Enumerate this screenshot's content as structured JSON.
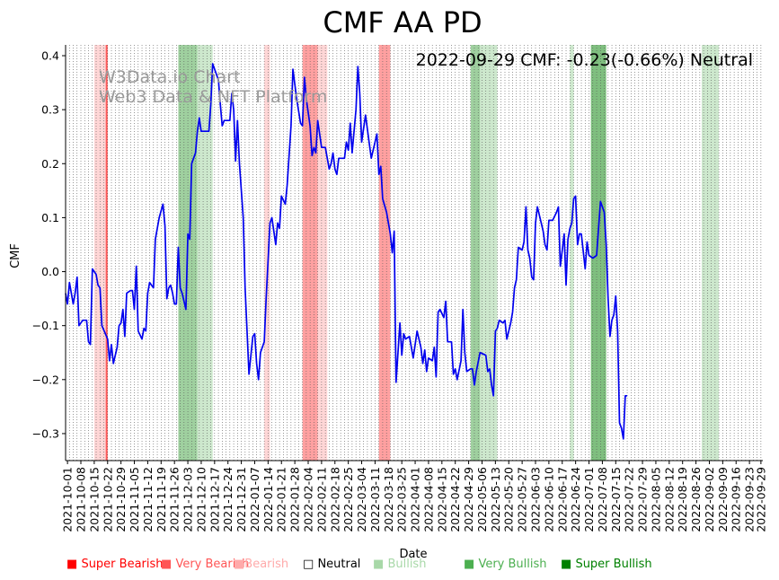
{
  "chart_data": {
    "type": "line",
    "title": "CMF AA PD",
    "xlabel": "Date",
    "ylabel": "CMF",
    "ylim": [
      -0.35,
      0.42
    ],
    "yticks": [
      -0.3,
      -0.2,
      -0.1,
      0.0,
      0.1,
      0.2,
      0.3,
      0.4
    ],
    "ytick_labels": [
      "−0.3",
      "−0.2",
      "−0.1",
      "0.0",
      "0.1",
      "0.2",
      "0.3",
      "0.4"
    ],
    "xlim": [
      "2021-09-30",
      "2022-09-30"
    ],
    "xtick_labels": [
      "2021-10-01",
      "2021-10-08",
      "2021-10-15",
      "2021-10-22",
      "2021-10-29",
      "2021-11-05",
      "2021-11-12",
      "2021-11-19",
      "2021-11-26",
      "2021-12-03",
      "2021-12-10",
      "2021-12-17",
      "2021-12-24",
      "2021-12-31",
      "2022-01-07",
      "2022-01-14",
      "2022-01-21",
      "2022-01-28",
      "2022-02-04",
      "2022-02-11",
      "2022-02-18",
      "2022-02-25",
      "2022-03-04",
      "2022-03-11",
      "2022-03-18",
      "2022-03-25",
      "2022-04-01",
      "2022-04-08",
      "2022-04-15",
      "2022-04-22",
      "2022-04-29",
      "2022-05-06",
      "2022-05-13",
      "2022-05-20",
      "2022-05-27",
      "2022-06-03",
      "2022-06-10",
      "2022-06-17",
      "2022-06-24",
      "2022-07-01",
      "2022-07-08",
      "2022-07-15",
      "2022-07-22",
      "2022-07-29",
      "2022-08-05",
      "2022-08-12",
      "2022-08-19",
      "2022-08-26",
      "2022-09-02",
      "2022-09-09",
      "2022-09-16",
      "2022-09-23",
      "2022-09-29"
    ],
    "annotation": "2022-09-29 CMF: -0.23(-0.66%) Neutral",
    "watermark": [
      "W3Data.io Chart",
      "Web3 Data & NFT Platform"
    ],
    "series": [
      {
        "name": "CMF",
        "color": "#0000ee",
        "points": [
          [
            "2021-09-30",
            -0.04
          ],
          [
            "2021-10-01",
            -0.06
          ],
          [
            "2021-10-02",
            -0.02
          ],
          [
            "2021-10-04",
            -0.06
          ],
          [
            "2021-10-05",
            -0.04
          ],
          [
            "2021-10-06",
            -0.01
          ],
          [
            "2021-10-07",
            -0.1
          ],
          [
            "2021-10-09",
            -0.09
          ],
          [
            "2021-10-11",
            -0.09
          ],
          [
            "2021-10-12",
            -0.13
          ],
          [
            "2021-10-13",
            -0.135
          ],
          [
            "2021-10-14",
            0.005
          ],
          [
            "2021-10-16",
            -0.005
          ],
          [
            "2021-10-17",
            -0.025
          ],
          [
            "2021-10-18",
            -0.03
          ],
          [
            "2021-10-19",
            -0.1
          ],
          [
            "2021-10-22",
            -0.125
          ],
          [
            "2021-10-23",
            -0.165
          ],
          [
            "2021-10-24",
            -0.135
          ],
          [
            "2021-10-25",
            -0.17
          ],
          [
            "2021-10-27",
            -0.14
          ],
          [
            "2021-10-28",
            -0.1
          ],
          [
            "2021-10-29",
            -0.095
          ],
          [
            "2021-10-30",
            -0.07
          ],
          [
            "2021-10-31",
            -0.12
          ],
          [
            "2021-11-01",
            -0.04
          ],
          [
            "2021-11-03",
            -0.035
          ],
          [
            "2021-11-04",
            -0.035
          ],
          [
            "2021-11-05",
            -0.07
          ],
          [
            "2021-11-06",
            0.01
          ],
          [
            "2021-11-07",
            -0.11
          ],
          [
            "2021-11-09",
            -0.125
          ],
          [
            "2021-11-10",
            -0.105
          ],
          [
            "2021-11-11",
            -0.11
          ],
          [
            "2021-11-12",
            -0.04
          ],
          [
            "2021-11-13",
            -0.02
          ],
          [
            "2021-11-15",
            -0.03
          ],
          [
            "2021-11-16",
            0.06
          ],
          [
            "2021-11-18",
            0.1
          ],
          [
            "2021-11-20",
            0.125
          ],
          [
            "2021-11-21",
            0.085
          ],
          [
            "2021-11-22",
            -0.05
          ],
          [
            "2021-11-23",
            -0.03
          ],
          [
            "2021-11-24",
            -0.025
          ],
          [
            "2021-11-25",
            -0.04
          ],
          [
            "2021-11-26",
            -0.06
          ],
          [
            "2021-11-27",
            -0.06
          ],
          [
            "2021-11-28",
            0.045
          ],
          [
            "2021-11-29",
            -0.03
          ],
          [
            "2021-11-30",
            -0.04
          ],
          [
            "2021-12-02",
            -0.07
          ],
          [
            "2021-12-03",
            0.07
          ],
          [
            "2021-12-04",
            0.06
          ],
          [
            "2021-12-05",
            0.2
          ],
          [
            "2021-12-07",
            0.22
          ],
          [
            "2021-12-08",
            0.26
          ],
          [
            "2021-12-09",
            0.285
          ],
          [
            "2021-12-10",
            0.26
          ],
          [
            "2021-12-14",
            0.26
          ],
          [
            "2021-12-15",
            0.31
          ],
          [
            "2021-12-16",
            0.385
          ],
          [
            "2021-12-19",
            0.355
          ],
          [
            "2021-12-20",
            0.31
          ],
          [
            "2021-12-21",
            0.27
          ],
          [
            "2021-12-22",
            0.28
          ],
          [
            "2021-12-25",
            0.28
          ],
          [
            "2021-12-26",
            0.33
          ],
          [
            "2021-12-27",
            0.3
          ],
          [
            "2021-12-28",
            0.205
          ],
          [
            "2021-12-29",
            0.28
          ],
          [
            "2021-12-30",
            0.2
          ],
          [
            "2022-01-01",
            0.1
          ],
          [
            "2022-01-02",
            -0.03
          ],
          [
            "2022-01-04",
            -0.19
          ],
          [
            "2022-01-06",
            -0.12
          ],
          [
            "2022-01-07",
            -0.115
          ],
          [
            "2022-01-08",
            -0.17
          ],
          [
            "2022-01-09",
            -0.2
          ],
          [
            "2022-01-10",
            -0.15
          ],
          [
            "2022-01-12",
            -0.13
          ],
          [
            "2022-01-13",
            -0.05
          ],
          [
            "2022-01-15",
            0.09
          ],
          [
            "2022-01-16",
            0.1
          ],
          [
            "2022-01-18",
            0.05
          ],
          [
            "2022-01-19",
            0.09
          ],
          [
            "2022-01-20",
            0.08
          ],
          [
            "2022-01-21",
            0.14
          ],
          [
            "2022-01-23",
            0.125
          ],
          [
            "2022-01-24",
            0.16
          ],
          [
            "2022-01-26",
            0.27
          ],
          [
            "2022-01-27",
            0.375
          ],
          [
            "2022-01-29",
            0.32
          ],
          [
            "2022-01-31",
            0.275
          ],
          [
            "2022-02-01",
            0.27
          ],
          [
            "2022-02-02",
            0.36
          ],
          [
            "2022-02-03",
            0.32
          ],
          [
            "2022-02-05",
            0.27
          ],
          [
            "2022-02-06",
            0.215
          ],
          [
            "2022-02-07",
            0.23
          ],
          [
            "2022-02-08",
            0.22
          ],
          [
            "2022-02-09",
            0.28
          ],
          [
            "2022-02-11",
            0.23
          ],
          [
            "2022-02-13",
            0.23
          ],
          [
            "2022-02-15",
            0.19
          ],
          [
            "2022-02-16",
            0.2
          ],
          [
            "2022-02-17",
            0.22
          ],
          [
            "2022-02-18",
            0.19
          ],
          [
            "2022-02-19",
            0.18
          ],
          [
            "2022-02-20",
            0.21
          ],
          [
            "2022-02-23",
            0.21
          ],
          [
            "2022-02-24",
            0.24
          ],
          [
            "2022-02-25",
            0.225
          ],
          [
            "2022-02-26",
            0.275
          ],
          [
            "2022-02-27",
            0.22
          ],
          [
            "2022-03-01",
            0.3
          ],
          [
            "2022-03-02",
            0.38
          ],
          [
            "2022-03-03",
            0.33
          ],
          [
            "2022-03-04",
            0.24
          ],
          [
            "2022-03-06",
            0.29
          ],
          [
            "2022-03-09",
            0.21
          ],
          [
            "2022-03-12",
            0.255
          ],
          [
            "2022-03-13",
            0.18
          ],
          [
            "2022-03-14",
            0.195
          ],
          [
            "2022-03-15",
            0.135
          ],
          [
            "2022-03-17",
            0.11
          ],
          [
            "2022-03-19",
            0.07
          ],
          [
            "2022-03-20",
            0.035
          ],
          [
            "2022-03-21",
            0.075
          ],
          [
            "2022-03-22",
            -0.205
          ],
          [
            "2022-03-24",
            -0.095
          ],
          [
            "2022-03-25",
            -0.155
          ],
          [
            "2022-03-26",
            -0.115
          ],
          [
            "2022-03-27",
            -0.125
          ],
          [
            "2022-03-29",
            -0.12
          ],
          [
            "2022-03-31",
            -0.16
          ],
          [
            "2022-04-02",
            -0.11
          ],
          [
            "2022-04-04",
            -0.14
          ],
          [
            "2022-04-05",
            -0.17
          ],
          [
            "2022-04-06",
            -0.145
          ],
          [
            "2022-04-07",
            -0.185
          ],
          [
            "2022-04-08",
            -0.16
          ],
          [
            "2022-04-10",
            -0.165
          ],
          [
            "2022-04-11",
            -0.14
          ],
          [
            "2022-04-12",
            -0.195
          ],
          [
            "2022-04-13",
            -0.075
          ],
          [
            "2022-04-14",
            -0.07
          ],
          [
            "2022-04-16",
            -0.085
          ],
          [
            "2022-04-17",
            -0.055
          ],
          [
            "2022-04-18",
            -0.13
          ],
          [
            "2022-04-20",
            -0.13
          ],
          [
            "2022-04-21",
            -0.19
          ],
          [
            "2022-04-22",
            -0.18
          ],
          [
            "2022-04-23",
            -0.2
          ],
          [
            "2022-04-25",
            -0.165
          ],
          [
            "2022-04-26",
            -0.07
          ],
          [
            "2022-04-27",
            -0.15
          ],
          [
            "2022-04-28",
            -0.185
          ],
          [
            "2022-04-30",
            -0.18
          ],
          [
            "2022-05-01",
            -0.18
          ],
          [
            "2022-05-02",
            -0.21
          ],
          [
            "2022-05-03",
            -0.185
          ],
          [
            "2022-05-05",
            -0.15
          ],
          [
            "2022-05-08",
            -0.155
          ],
          [
            "2022-05-09",
            -0.185
          ],
          [
            "2022-05-10",
            -0.18
          ],
          [
            "2022-05-11",
            -0.21
          ],
          [
            "2022-05-12",
            -0.23
          ],
          [
            "2022-05-13",
            -0.11
          ],
          [
            "2022-05-14",
            -0.105
          ],
          [
            "2022-05-15",
            -0.09
          ],
          [
            "2022-05-17",
            -0.095
          ],
          [
            "2022-05-18",
            -0.09
          ],
          [
            "2022-05-19",
            -0.125
          ],
          [
            "2022-05-21",
            -0.095
          ],
          [
            "2022-05-22",
            -0.075
          ],
          [
            "2022-05-23",
            -0.03
          ],
          [
            "2022-05-24",
            -0.015
          ],
          [
            "2022-05-25",
            0.045
          ],
          [
            "2022-05-27",
            0.04
          ],
          [
            "2022-05-28",
            0.055
          ],
          [
            "2022-05-29",
            0.12
          ],
          [
            "2022-05-30",
            0.04
          ],
          [
            "2022-05-31",
            0.025
          ],
          [
            "2022-06-01",
            -0.01
          ],
          [
            "2022-06-02",
            -0.015
          ],
          [
            "2022-06-03",
            0.09
          ],
          [
            "2022-06-04",
            0.12
          ],
          [
            "2022-06-06",
            0.09
          ],
          [
            "2022-06-07",
            0.075
          ],
          [
            "2022-06-08",
            0.05
          ],
          [
            "2022-06-09",
            0.04
          ],
          [
            "2022-06-10",
            0.095
          ],
          [
            "2022-06-12",
            0.095
          ],
          [
            "2022-06-14",
            0.11
          ],
          [
            "2022-06-15",
            0.12
          ],
          [
            "2022-06-16",
            0.01
          ],
          [
            "2022-06-17",
            0.04
          ],
          [
            "2022-06-18",
            0.07
          ],
          [
            "2022-06-19",
            -0.025
          ],
          [
            "2022-06-20",
            0.06
          ],
          [
            "2022-06-21",
            0.08
          ],
          [
            "2022-06-22",
            0.09
          ],
          [
            "2022-06-23",
            0.135
          ],
          [
            "2022-06-24",
            0.14
          ],
          [
            "2022-06-25",
            0.05
          ],
          [
            "2022-06-26",
            0.07
          ],
          [
            "2022-06-27",
            0.07
          ],
          [
            "2022-06-29",
            0.005
          ],
          [
            "2022-06-30",
            0.055
          ],
          [
            "2022-07-01",
            0.03
          ],
          [
            "2022-07-03",
            0.025
          ],
          [
            "2022-07-05",
            0.03
          ],
          [
            "2022-07-07",
            0.13
          ],
          [
            "2022-07-08",
            0.12
          ],
          [
            "2022-07-09",
            0.11
          ],
          [
            "2022-07-10",
            0.05
          ],
          [
            "2022-07-11",
            -0.05
          ],
          [
            "2022-07-12",
            -0.12
          ],
          [
            "2022-07-13",
            -0.09
          ],
          [
            "2022-07-14",
            -0.08
          ],
          [
            "2022-07-15",
            -0.045
          ],
          [
            "2022-07-16",
            -0.11
          ],
          [
            "2022-07-17",
            -0.28
          ],
          [
            "2022-07-18",
            -0.29
          ],
          [
            "2022-07-19",
            -0.31
          ],
          [
            "2022-07-20",
            -0.23
          ],
          [
            "2022-07-21",
            -0.23
          ]
        ]
      }
    ],
    "bands": [
      {
        "type": "Bearish",
        "start": "2021-10-15",
        "end": "2021-10-21"
      },
      {
        "type": "Super Bearish",
        "start": "2021-10-21",
        "end": "2021-10-22"
      },
      {
        "type": "Very Bullish",
        "start": "2021-11-28",
        "end": "2021-12-08"
      },
      {
        "type": "Bullish",
        "start": "2021-12-08",
        "end": "2021-12-16"
      },
      {
        "type": "Bearish",
        "start": "2022-01-12",
        "end": "2022-01-15"
      },
      {
        "type": "Very Bearish",
        "start": "2022-02-01",
        "end": "2022-02-09"
      },
      {
        "type": "Bearish",
        "start": "2022-02-09",
        "end": "2022-02-14"
      },
      {
        "type": "Very Bearish",
        "start": "2022-03-13",
        "end": "2022-03-19"
      },
      {
        "type": "Very Bullish",
        "start": "2022-04-30",
        "end": "2022-05-05"
      },
      {
        "type": "Bullish",
        "start": "2022-05-05",
        "end": "2022-05-14"
      },
      {
        "type": "Bullish",
        "start": "2022-06-21",
        "end": "2022-06-23"
      },
      {
        "type": "Super Bullish",
        "start": "2022-07-02",
        "end": "2022-07-10"
      },
      {
        "type": "Bullish",
        "start": "2022-08-29",
        "end": "2022-09-07"
      }
    ]
  },
  "legend": [
    {
      "marker": "■",
      "label": "Super Bearish",
      "color": "#ff0000"
    },
    {
      "marker": "■",
      "label": "Very Bearish",
      "color": "#ff5555"
    },
    {
      "marker": "■",
      "label": "Bearish",
      "color": "#ffaaaa"
    },
    {
      "marker": "□",
      "label": "Neutral",
      "color": "#000000"
    },
    {
      "marker": "■",
      "label": "Bullish",
      "color": "#a8d8a8"
    },
    {
      "marker": "■",
      "label": "Very Bullish",
      "color": "#4caf50"
    },
    {
      "marker": "■",
      "label": "Super Bullish",
      "color": "#008000"
    }
  ],
  "band_colors": {
    "Super Bearish": "#ff5a5a",
    "Very Bearish": "#ffa0a0",
    "Bearish": "#ffd6d6",
    "Bullish": "#cde8cd",
    "Very Bullish": "#9fd09f",
    "Super Bullish": "#7fbf7f"
  }
}
